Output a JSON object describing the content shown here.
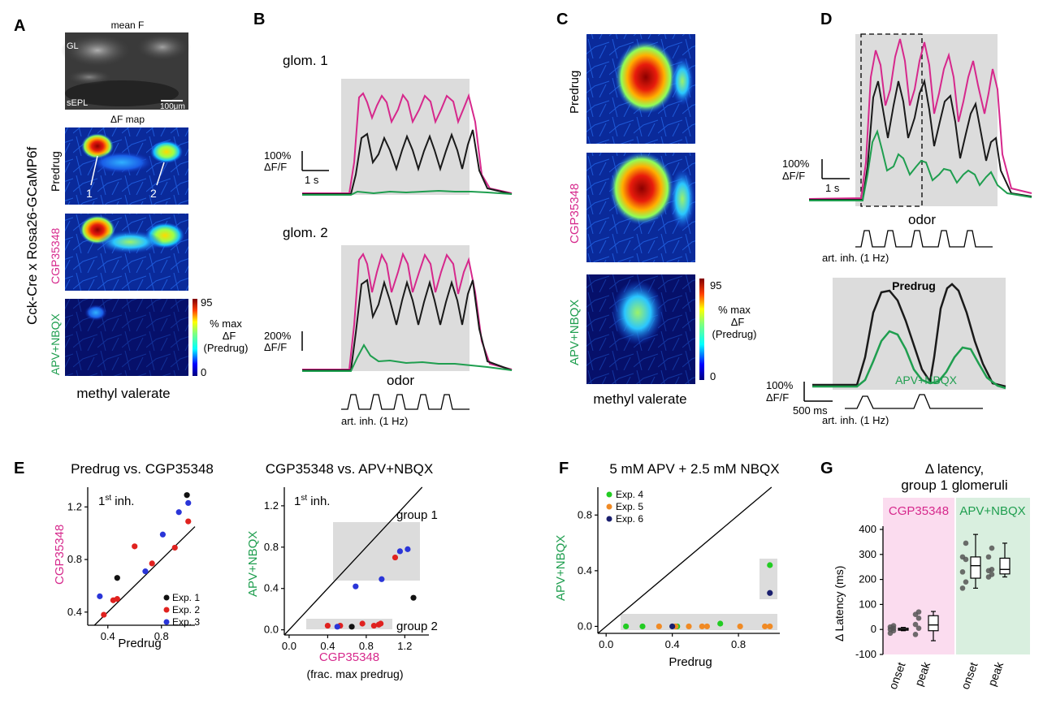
{
  "panel_letters": {
    "A": "A",
    "B": "B",
    "C": "C",
    "D": "D",
    "E": "E",
    "F": "F",
    "G": "G"
  },
  "panelA": {
    "side_title": "Cck-Cre x Rosa26-GCaMP6f",
    "mean_f_label": "mean F",
    "gl_label": "GL",
    "sepl_label": "sEPL",
    "scale_label": "100μm",
    "df_map_label": "ΔF map",
    "row_labels": [
      "Predrug",
      "CGP35348",
      "APV+NBQX"
    ],
    "glom_markers": [
      "1",
      "2"
    ],
    "colorbar_max": "95",
    "colorbar_min": "0",
    "colorbar_label": [
      "% max",
      "ΔF",
      "(Predrug)"
    ],
    "odor_name": "methyl valerate"
  },
  "panelB": {
    "glom1_title": "glom. 1",
    "glom2_title": "glom. 2",
    "scale1_y": "100%",
    "scale1_unit": "ΔF/F",
    "scale1_x": "1 s",
    "scale2_y": "200%",
    "scale2_unit": "ΔF/F",
    "odor_label": "odor",
    "inhale_label": "art. inh. (1 Hz)"
  },
  "panelC": {
    "row_labels": [
      "Predrug",
      "CGP35348",
      "APV+NBQX"
    ],
    "colorbar_max": "95",
    "colorbar_min": "0",
    "colorbar_label": [
      "% max",
      "ΔF",
      "(Predrug)"
    ],
    "odor_name": "methyl valerate"
  },
  "panelD": {
    "scale_y": "100%",
    "scale_unit": "ΔF/F",
    "scale_x": "1 s",
    "odor_label": "odor",
    "inhale_label": "art. inh. (1 Hz)",
    "zoom_predrug_label": "Predrug",
    "zoom_apv_label": "APV+NBQX",
    "zoom_scale_y": "100%",
    "zoom_scale_unit": "ΔF/F",
    "zoom_scale_x": "500 ms",
    "zoom_inhale_label": "art. inh. (1 Hz)"
  },
  "colors": {
    "predrug": "#1a1a1a",
    "cgp": "#d6288c",
    "apv": "#1f9e4f",
    "exp1": "#111111",
    "exp2": "#e0221f",
    "exp3": "#2a35d8",
    "exp4": "#22cc22",
    "exp5": "#f08a24",
    "exp6": "#1a1f6e",
    "gray_box": "#dcdcdc",
    "pink_bg": "#fbdcef",
    "green_bg": "#d9efdf"
  },
  "chart_data": [
    {
      "id": "E1",
      "type": "scatter",
      "title": "Predrug vs. CGP35348",
      "annotation": "1st inh.",
      "annotation_main": "1",
      "annotation_sup": "st",
      "annotation_rest": " inh.",
      "xlabel": "Predrug",
      "ylabel": "CGP35348",
      "xlim": [
        0.25,
        1.05
      ],
      "ylim": [
        0.3,
        1.35
      ],
      "xticks": [
        0.4,
        0.8
      ],
      "yticks": [
        0.4,
        0.8,
        1.2
      ],
      "xtick_labels": [
        "0.4",
        "0.8"
      ],
      "ytick_labels": [
        "0.4",
        "0.8",
        "1.2"
      ],
      "legend": [
        "Exp. 1",
        "Exp. 2",
        "Exp. 3"
      ],
      "series": [
        {
          "name": "Exp. 1",
          "points": [
            [
              0.47,
              0.66
            ],
            [
              0.99,
              1.29
            ]
          ]
        },
        {
          "name": "Exp. 2",
          "points": [
            [
              0.37,
              0.38
            ],
            [
              0.44,
              0.49
            ],
            [
              0.47,
              0.5
            ],
            [
              0.6,
              0.9
            ],
            [
              0.73,
              0.77
            ],
            [
              0.9,
              0.89
            ],
            [
              1.0,
              1.09
            ]
          ]
        },
        {
          "name": "Exp. 3",
          "points": [
            [
              0.34,
              0.52
            ],
            [
              0.68,
              0.71
            ],
            [
              0.81,
              0.99
            ],
            [
              0.93,
              1.16
            ],
            [
              1.0,
              1.23
            ]
          ]
        }
      ]
    },
    {
      "id": "E2",
      "type": "scatter",
      "title": "CGP35348 vs. APV+NBQX",
      "annotation": "1st inh.",
      "annotation_main": "1",
      "annotation_sup": "st",
      "annotation_rest": " inh.",
      "xlabel": "CGP35348",
      "xlabel_sub": "(frac. max predrug)",
      "ylabel": "APV+NBQX",
      "xlim": [
        -0.05,
        1.45
      ],
      "ylim": [
        -0.05,
        1.38
      ],
      "xticks": [
        0,
        0.4,
        0.8,
        1.2
      ],
      "yticks": [
        0,
        0.4,
        0.8,
        1.2
      ],
      "xtick_labels": [
        "0.0",
        "0.4",
        "0.8",
        "1.2"
      ],
      "ytick_labels": [
        "0.0",
        "0.4",
        "0.8",
        "1.2"
      ],
      "group_labels": [
        "group 1",
        "group 2"
      ],
      "series": [
        {
          "name": "Exp. 1",
          "points": [
            [
              0.65,
              0.03
            ],
            [
              1.29,
              0.31
            ]
          ]
        },
        {
          "name": "Exp. 2",
          "points": [
            [
              0.4,
              0.04
            ],
            [
              0.53,
              0.04
            ],
            [
              0.76,
              0.06
            ],
            [
              0.88,
              0.04
            ],
            [
              0.93,
              0.05
            ],
            [
              0.95,
              0.06
            ],
            [
              1.1,
              0.7
            ]
          ]
        },
        {
          "name": "Exp. 3",
          "points": [
            [
              0.5,
              0.03
            ],
            [
              0.69,
              0.42
            ],
            [
              0.96,
              0.49
            ],
            [
              1.15,
              0.76
            ],
            [
              1.23,
              0.78
            ]
          ]
        }
      ]
    },
    {
      "id": "F",
      "type": "scatter",
      "title": "5 mM APV + 2.5 mM NBQX",
      "xlabel": "Predrug",
      "ylabel": "APV+NBQX",
      "xlim": [
        -0.05,
        1.05
      ],
      "ylim": [
        -0.05,
        1.0
      ],
      "xticks": [
        0,
        0.4,
        0.8
      ],
      "yticks": [
        0,
        0.4,
        0.8
      ],
      "xtick_labels": [
        "0.0",
        "0.4",
        "0.8"
      ],
      "ytick_labels": [
        "0.0",
        "0.4",
        "0.8"
      ],
      "legend": [
        "Exp. 4",
        "Exp. 5",
        "Exp. 6"
      ],
      "series": [
        {
          "name": "Exp. 4",
          "points": [
            [
              0.12,
              0.0
            ],
            [
              0.22,
              0.0
            ],
            [
              0.43,
              0.0
            ],
            [
              0.69,
              0.02
            ],
            [
              0.99,
              0.44
            ]
          ]
        },
        {
          "name": "Exp. 5",
          "points": [
            [
              0.32,
              0.0
            ],
            [
              0.42,
              0.0
            ],
            [
              0.5,
              0.0
            ],
            [
              0.58,
              0.0
            ],
            [
              0.61,
              0.0
            ],
            [
              0.81,
              0.0
            ],
            [
              0.96,
              0.0
            ],
            [
              0.99,
              0.0
            ]
          ]
        },
        {
          "name": "Exp. 6",
          "points": [
            [
              0.4,
              0.0
            ],
            [
              0.99,
              0.24
            ]
          ]
        }
      ]
    },
    {
      "id": "G",
      "type": "box",
      "title": "Δ latency,",
      "subtitle": "group 1 glomeruli",
      "ylabel": "Δ Latency (ms)",
      "ylim": [
        -100,
        400
      ],
      "yticks": [
        -100,
        0,
        100,
        200,
        300,
        400
      ],
      "ytick_labels": [
        "-100",
        "0",
        "100",
        "200",
        "300",
        "400"
      ],
      "groups": [
        "CGP35348",
        "APV+NBQX"
      ],
      "categories": [
        "onset",
        "peak",
        "onset",
        "peak"
      ],
      "points": [
        [
          -15,
          -5,
          0,
          5,
          10,
          15
        ],
        [
          -20,
          5,
          20,
          45,
          60,
          70
        ],
        [
          165,
          190,
          230,
          280,
          290,
          345
        ],
        [
          210,
          220,
          235,
          240,
          290,
          325
        ]
      ],
      "boxes": [
        {
          "whisker_low": -5,
          "q1": -3,
          "median": 0,
          "q3": 5,
          "whisker_high": 8
        },
        {
          "whisker_low": -45,
          "q1": -5,
          "median": 18,
          "q3": 55,
          "whisker_high": 72
        },
        {
          "whisker_low": 165,
          "q1": 205,
          "median": 255,
          "q3": 290,
          "whisker_high": 380
        },
        {
          "whisker_low": 210,
          "q1": 222,
          "median": 240,
          "q3": 285,
          "whisker_high": 345
        }
      ]
    }
  ]
}
